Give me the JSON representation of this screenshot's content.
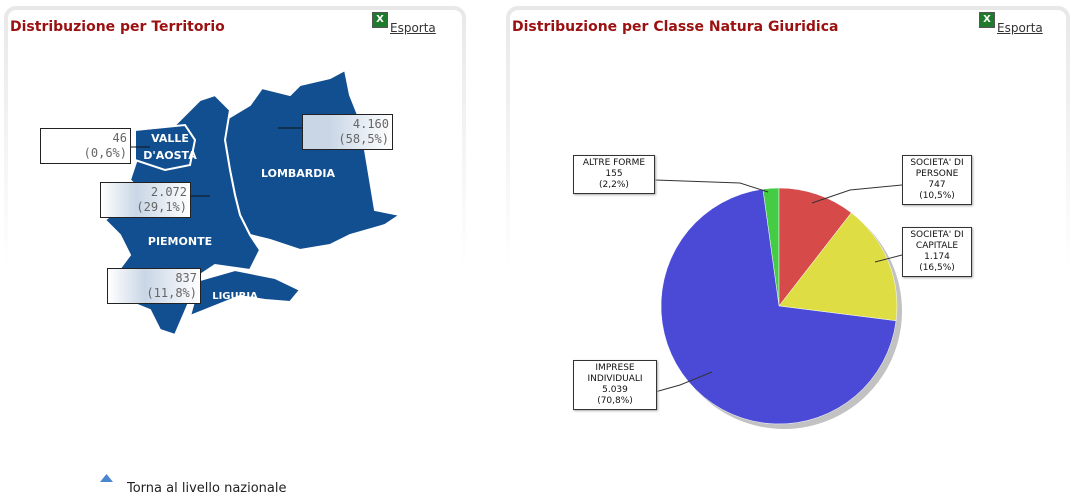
{
  "left_panel": {
    "title": "Distribuzione per Territorio",
    "export": "Esporta"
  },
  "map": {
    "regions": [
      {
        "name": "VALLE D'AOSTA",
        "value": "46",
        "share": "(0,6%)"
      },
      {
        "name": "LOMBARDIA",
        "value": "4.160",
        "share": "(58,5%)"
      },
      {
        "name": "PIEMONTE",
        "value": "2.072",
        "share": "(29,1%)"
      },
      {
        "name": "LIGURIA",
        "value": "837",
        "share": "(11,8%)"
      }
    ]
  },
  "right_panel": {
    "title": "Distribuzione per Classe Natura Giuridica",
    "export": "Esporta"
  },
  "chart_data": {
    "type": "pie",
    "categories": [
      "ALTRE FORME",
      "SOCIETA' DI PERSONE",
      "SOCIETA' DI CAPITALE",
      "IMPRESE INDIVIDUALI"
    ],
    "values": [
      155,
      747,
      1174,
      5039
    ],
    "value_labels": [
      "155",
      "747",
      "1.174",
      "5.039"
    ],
    "share_labels": [
      "(2,2%)",
      "(10,5%)",
      "(16,5%)",
      "(70,8%)"
    ],
    "colors": [
      "#44cc44",
      "#d64a4a",
      "#dede44",
      "#4a4ad6"
    ]
  },
  "footer": {
    "link": "Torna al livello nazionale"
  }
}
